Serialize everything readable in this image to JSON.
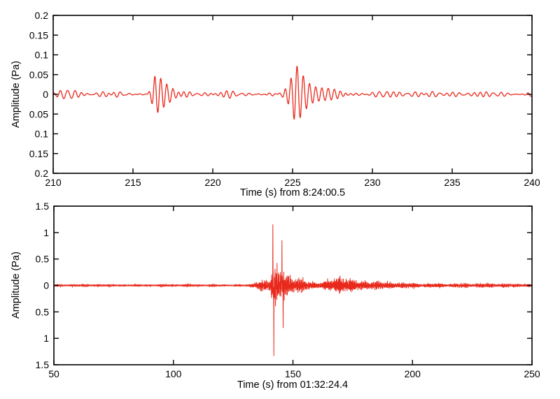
{
  "figure": {
    "background_color": "#ffffff",
    "axis_color": "#000000",
    "line_color": "#e8291c"
  },
  "chart_data": [
    {
      "type": "line",
      "subtype": "waveform",
      "title": "",
      "xlabel": "Time (s) from 8:24:00.5",
      "ylabel": "Amplitude (Pa)",
      "xlim": [
        210,
        240
      ],
      "ylim": [
        -0.2,
        0.2
      ],
      "xticks": {
        "values": [
          210,
          215,
          220,
          225,
          230,
          235,
          240
        ],
        "labels": [
          "210",
          "215",
          "220",
          "225",
          "230",
          "235",
          "240"
        ]
      },
      "yticks": {
        "values": [
          0.2,
          0.15,
          0.1,
          0.05,
          0,
          -0.05,
          -0.1,
          -0.15,
          -0.2
        ],
        "labels": [
          "0.2",
          "0.15",
          "0.1",
          "0.05",
          "0",
          "0.05",
          "0.1",
          "0.15",
          "0.2"
        ]
      },
      "grid": false,
      "box": true,
      "legend": null,
      "line_color": "#e8291c",
      "waveform_model": "noise_plus_bursts",
      "sample_dt": 0.02,
      "seed": 20513,
      "noise": {
        "amp": 0.009,
        "freq_min": 1.4,
        "freq_max": 3.1
      },
      "events": [
        {
          "name": "burst-1",
          "onset_s": 215.9,
          "peak_amplitude_pa": 0.048,
          "freq_hz": 2.7,
          "envelope": [
            [
              215.9,
              0.0
            ],
            [
              216.15,
              0.022
            ],
            [
              216.35,
              0.048
            ],
            [
              216.6,
              0.044
            ],
            [
              216.9,
              0.032
            ],
            [
              217.2,
              0.022
            ],
            [
              217.6,
              0.014
            ],
            [
              218.2,
              0.007
            ],
            [
              218.8,
              0.0
            ]
          ]
        },
        {
          "name": "burst-2",
          "onset_s": 224.4,
          "peak_amplitude_pa": 0.078,
          "freq_hz": 2.55,
          "envelope": [
            [
              224.4,
              0.0
            ],
            [
              224.7,
              0.02
            ],
            [
              225.0,
              0.05
            ],
            [
              225.2,
              0.078
            ],
            [
              225.5,
              0.065
            ],
            [
              225.8,
              0.051
            ],
            [
              226.1,
              0.038
            ],
            [
              226.5,
              0.028
            ],
            [
              227.0,
              0.018
            ],
            [
              227.6,
              0.011
            ],
            [
              228.4,
              0.0
            ]
          ]
        }
      ]
    },
    {
      "type": "line",
      "subtype": "waveform",
      "title": "",
      "xlabel": "Time (s) from 01:32:24.4",
      "ylabel": "Amplitude (Pa)",
      "xlim": [
        50,
        250
      ],
      "ylim": [
        -1.5,
        1.5
      ],
      "xticks": {
        "values": [
          50,
          100,
          150,
          200,
          250
        ],
        "labels": [
          "50",
          "100",
          "150",
          "200",
          "250"
        ]
      },
      "yticks": {
        "values": [
          1.5,
          1,
          0.5,
          0,
          -0.5,
          -1,
          -1.5
        ],
        "labels": [
          "1.5",
          "1",
          "0.5",
          "0",
          "0.5",
          "1",
          "1.5"
        ]
      },
      "grid": false,
      "box": true,
      "legend": null,
      "line_color": "#e8291c",
      "waveform_model": "envelope_noise",
      "sample_dt": 0.05,
      "seed": 77421,
      "noise": {
        "amp": 1.0,
        "freq_min": 1.6,
        "freq_max": 9.5
      },
      "envelope": [
        [
          50,
          0.022
        ],
        [
          90,
          0.024
        ],
        [
          120,
          0.022
        ],
        [
          128,
          0.022
        ],
        [
          132,
          0.028
        ],
        [
          134,
          0.07
        ],
        [
          136,
          0.11
        ],
        [
          138,
          0.1
        ],
        [
          140,
          0.13
        ],
        [
          141,
          0.3
        ],
        [
          142,
          0.42
        ],
        [
          143,
          0.38
        ],
        [
          144,
          0.26
        ],
        [
          145,
          0.32
        ],
        [
          146,
          0.35
        ],
        [
          147,
          0.22
        ],
        [
          148,
          0.18
        ],
        [
          150,
          0.2
        ],
        [
          152,
          0.16
        ],
        [
          154,
          0.12
        ],
        [
          157,
          0.09
        ],
        [
          160,
          0.08
        ],
        [
          164,
          0.09
        ],
        [
          167,
          0.17
        ],
        [
          169,
          0.27
        ],
        [
          171,
          0.28
        ],
        [
          172,
          0.2
        ],
        [
          174,
          0.13
        ],
        [
          177,
          0.11
        ],
        [
          180,
          0.1
        ],
        [
          184,
          0.085
        ],
        [
          188,
          0.07
        ],
        [
          192,
          0.06
        ],
        [
          196,
          0.055
        ],
        [
          205,
          0.047
        ],
        [
          220,
          0.042
        ],
        [
          235,
          0.038
        ],
        [
          250,
          0.035
        ]
      ],
      "spikes": [
        {
          "t": 141.6,
          "v": 1.15
        },
        {
          "t": 142.0,
          "v": -1.33
        },
        {
          "t": 145.4,
          "v": 0.85
        },
        {
          "t": 145.9,
          "v": -0.8
        }
      ]
    }
  ]
}
